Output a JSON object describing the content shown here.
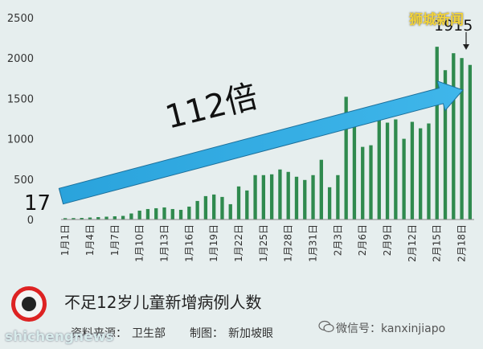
{
  "chart_data": {
    "type": "bar",
    "categories": [
      "1月1日",
      "1月2日",
      "1月3日",
      "1月4日",
      "1月5日",
      "1月6日",
      "1月7日",
      "1月8日",
      "1月9日",
      "1月10日",
      "1月11日",
      "1月12日",
      "1月13日",
      "1月14日",
      "1月15日",
      "1月16日",
      "1月17日",
      "1月18日",
      "1月19日",
      "1月20日",
      "1月21日",
      "1月22日",
      "1月23日",
      "1月24日",
      "1月25日",
      "1月26日",
      "1月27日",
      "1月28日",
      "1月29日",
      "1月30日",
      "1月31日",
      "2月1日",
      "2月2日",
      "2月3日",
      "2月4日",
      "2月5日",
      "2月6日",
      "2月7日",
      "2月8日",
      "2月9日",
      "2月10日",
      "2月11日",
      "2月12日",
      "2月13日",
      "2月14日",
      "2月15日",
      "2月16日",
      "2月17日",
      "2月18日",
      "2月19日"
    ],
    "tick_labels": [
      "1月1日",
      "1月4日",
      "1月7日",
      "1月10日",
      "1月13日",
      "1月16日",
      "1月19日",
      "1月22日",
      "1月25日",
      "1月28日",
      "1月31日",
      "2月3日",
      "2月6日",
      "2月9日",
      "2月12日",
      "2月15日",
      "2月18日"
    ],
    "values": [
      17,
      18,
      20,
      25,
      30,
      35,
      40,
      45,
      75,
      110,
      130,
      140,
      150,
      130,
      120,
      160,
      230,
      290,
      310,
      280,
      190,
      410,
      360,
      550,
      550,
      560,
      620,
      590,
      530,
      490,
      550,
      740,
      400,
      550,
      1520,
      1160,
      900,
      920,
      1260,
      1200,
      1240,
      1000,
      1210,
      1130,
      1190,
      2140,
      1850,
      2060,
      2000,
      1915
    ],
    "ylim": [
      0,
      2500
    ],
    "yticks": [
      0,
      500,
      1000,
      1500,
      2000,
      2500
    ],
    "bar_color": "#2f8a4e",
    "grid": false
  },
  "annotations": {
    "multiplier": "112倍",
    "start_value": "17",
    "end_value": "1915",
    "arrow_color": "#2fa8df"
  },
  "title": "不足12岁儿童新增病例人数",
  "source_label": "资料来源：",
  "source_value": "卫生部",
  "made_label": "制图：",
  "made_value": "新加坡眼",
  "watermark_top": "狮城新闻",
  "watermark_bottom": "shichengnews",
  "wechat": "微信号：kanxinjiapo"
}
